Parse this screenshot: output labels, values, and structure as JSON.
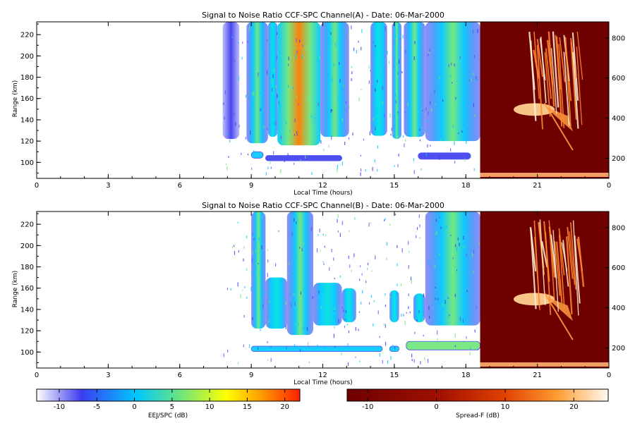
{
  "colors": {
    "axis": "#000000",
    "background": "#ffffff",
    "ejj_scale": [
      "#ffffff",
      "#3c3cf0",
      "#00c8ff",
      "#6ee67a",
      "#ffff00",
      "#ff9600",
      "#ff2000"
    ],
    "spreadf_scale": [
      "#6e0000",
      "#c02000",
      "#ff6a00",
      "#ffc070",
      "#fffaf0"
    ]
  },
  "chart_data": [
    {
      "type": "heatmap",
      "title": "Signal to Noise Ratio CCF-SPC Channel(A) - Date: 06-Mar-2000",
      "xlabel": "Local Time (hours)",
      "ylabel": "Range (km)",
      "xlim": [
        0,
        24
      ],
      "ylim": [
        85,
        232
      ],
      "xticks": [
        "0",
        "3",
        "6",
        "9",
        "12",
        "15",
        "18",
        "21",
        "0"
      ],
      "yticks": [
        "100",
        "120",
        "140",
        "160",
        "180",
        "200",
        "220"
      ],
      "right_yticks": [
        "200",
        "400",
        "600",
        "800"
      ],
      "right_ylim": [
        100,
        880
      ],
      "ejj_end_hour": 18.6,
      "ejj_columns": [
        {
          "t0": 7.8,
          "t1": 8.5,
          "top": 232,
          "bottom": 122,
          "peak": -8
        },
        {
          "t0": 8.8,
          "t1": 9.7,
          "top": 232,
          "bottom": 118,
          "peak": 2
        },
        {
          "t0": 9.7,
          "t1": 10.1,
          "top": 232,
          "bottom": 124,
          "peak": 0
        },
        {
          "t0": 10.1,
          "t1": 11.9,
          "top": 232,
          "bottom": 116,
          "peak": 18
        },
        {
          "t0": 11.9,
          "t1": 13.1,
          "top": 232,
          "bottom": 124,
          "peak": 3
        },
        {
          "t0": 14.0,
          "t1": 14.7,
          "top": 232,
          "bottom": 125,
          "peak": 0
        },
        {
          "t0": 14.9,
          "t1": 15.3,
          "top": 232,
          "bottom": 122,
          "peak": 2
        },
        {
          "t0": 15.4,
          "t1": 16.3,
          "top": 232,
          "bottom": 124,
          "peak": 3
        },
        {
          "t0": 16.3,
          "t1": 18.6,
          "top": 232,
          "bottom": 120,
          "peak": 4
        }
      ],
      "ejj_layers": [
        {
          "t0": 9.0,
          "t1": 9.5,
          "center": 107,
          "half": 3,
          "peak": 0
        },
        {
          "t0": 9.6,
          "t1": 12.8,
          "center": 104,
          "half": 2.5,
          "peak": -3
        },
        {
          "t0": 16.0,
          "t1": 18.2,
          "center": 106,
          "half": 3,
          "peak": -3
        }
      ],
      "spreadf_plumes": [
        {
          "h0": 0.1,
          "h1": 0.42,
          "width": 0.05,
          "intensity": 10
        },
        {
          "h0": 0.28,
          "h1": 0.62,
          "width": 0.06,
          "intensity": 14
        }
      ]
    },
    {
      "type": "heatmap",
      "title": "Signal to Noise Ratio CCF-SPC Channel(B) - Date: 06-Mar-2000",
      "xlabel": "Local Time (hours)",
      "ylabel": "Range (km)",
      "xlim": [
        0,
        24
      ],
      "ylim": [
        85,
        232
      ],
      "xticks": [
        "0",
        "3",
        "6",
        "9",
        "12",
        "15",
        "18",
        "21",
        "0"
      ],
      "yticks": [
        "100",
        "120",
        "140",
        "160",
        "180",
        "200",
        "220"
      ],
      "right_yticks": [
        "200",
        "400",
        "600",
        "800"
      ],
      "right_ylim": [
        100,
        880
      ],
      "ejj_end_hour": 18.6,
      "ejj_columns": [
        {
          "t0": 9.0,
          "t1": 9.6,
          "top": 232,
          "bottom": 122,
          "peak": 2
        },
        {
          "t0": 9.6,
          "t1": 10.5,
          "top": 170,
          "bottom": 122,
          "peak": -2
        },
        {
          "t0": 10.5,
          "t1": 11.6,
          "top": 232,
          "bottom": 116,
          "peak": 3
        },
        {
          "t0": 11.6,
          "t1": 12.8,
          "top": 165,
          "bottom": 125,
          "peak": -3
        },
        {
          "t0": 12.8,
          "t1": 13.4,
          "top": 160,
          "bottom": 128,
          "peak": -4
        },
        {
          "t0": 14.8,
          "t1": 15.2,
          "top": 158,
          "bottom": 128,
          "peak": -3
        },
        {
          "t0": 15.8,
          "t1": 16.3,
          "top": 155,
          "bottom": 128,
          "peak": -3
        },
        {
          "t0": 16.3,
          "t1": 18.6,
          "top": 232,
          "bottom": 125,
          "peak": 4
        }
      ],
      "ejj_layers": [
        {
          "t0": 9.0,
          "t1": 14.5,
          "center": 103,
          "half": 2.5,
          "peak": -2
        },
        {
          "t0": 14.8,
          "t1": 15.2,
          "center": 103,
          "half": 2.5,
          "peak": -2
        },
        {
          "t0": 15.5,
          "t1": 18.6,
          "center": 106,
          "half": 4,
          "peak": 10
        }
      ],
      "spreadf_plumes": [
        {
          "h0": 0.1,
          "h1": 0.42,
          "width": 0.05,
          "intensity": 10
        },
        {
          "h0": 0.28,
          "h1": 0.62,
          "width": 0.06,
          "intensity": 14
        }
      ]
    }
  ],
  "colorbars": [
    {
      "label": "EEJ/SPC (dB)",
      "ticks": [
        "-10",
        "-5",
        "0",
        "5",
        "10",
        "15",
        "20"
      ],
      "range": [
        -13,
        22
      ]
    },
    {
      "label": "Spread-F (dB)",
      "ticks": [
        "-10",
        "0",
        "10",
        "20"
      ],
      "range": [
        -13,
        25
      ]
    }
  ]
}
